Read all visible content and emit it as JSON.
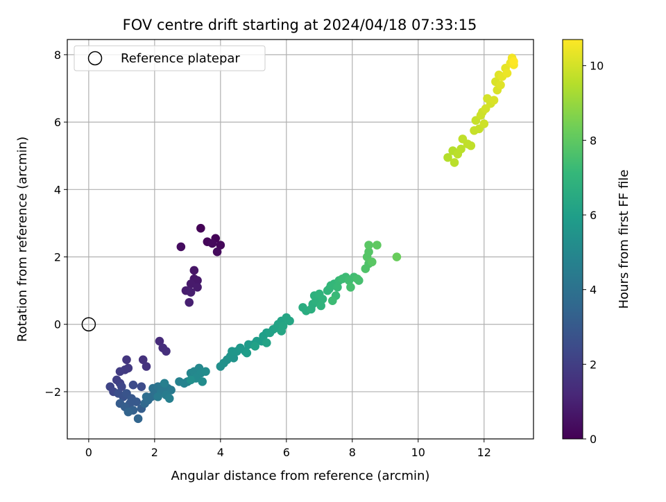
{
  "chart_data": {
    "type": "scatter",
    "title": "FOV centre drift starting at 2024/04/18 07:33:15",
    "xlabel": "Angular distance from reference (arcmin)",
    "ylabel": "Rotation from reference (arcmin)",
    "xlim": [
      -0.65,
      13.5
    ],
    "ylim": [
      -3.4,
      8.45
    ],
    "xticks": [
      0,
      2,
      4,
      6,
      8,
      10,
      12
    ],
    "yticks": [
      -2,
      0,
      2,
      4,
      6,
      8
    ],
    "xtick_labels": [
      "0",
      "2",
      "4",
      "6",
      "8",
      "10",
      "12"
    ],
    "ytick_labels": [
      "−2",
      "0",
      "2",
      "4",
      "6",
      "8"
    ],
    "grid": true,
    "legend": {
      "placement": "top-left",
      "entries": [
        "Reference platepar"
      ]
    },
    "colorbar": {
      "label": "Hours from first FF file",
      "colormap": "viridis",
      "range": [
        0,
        10.7
      ],
      "ticks": [
        0,
        2,
        4,
        6,
        8,
        10
      ],
      "tick_labels": [
        "0",
        "2",
        "4",
        "6",
        "8",
        "10"
      ]
    },
    "reference_point": {
      "x": 0,
      "y": 0,
      "label": "Reference platepar"
    },
    "series": [
      {
        "name": "",
        "points": [
          [
            3.4,
            2.85,
            0.05
          ],
          [
            3.85,
            2.55,
            0.1
          ],
          [
            3.6,
            2.45,
            0.15
          ],
          [
            4.0,
            2.35,
            0.2
          ],
          [
            3.75,
            2.4,
            0.25
          ],
          [
            3.9,
            2.15,
            0.3
          ],
          [
            2.8,
            2.3,
            0.35
          ],
          [
            3.2,
            1.6,
            0.6
          ],
          [
            3.2,
            1.35,
            0.65
          ],
          [
            3.3,
            1.3,
            0.7
          ],
          [
            3.1,
            1.2,
            0.75
          ],
          [
            3.3,
            1.1,
            0.8
          ],
          [
            2.95,
            1.0,
            0.85
          ],
          [
            3.1,
            0.95,
            0.9
          ],
          [
            3.05,
            0.65,
            0.95
          ],
          [
            2.15,
            -0.5,
            1.3
          ],
          [
            2.25,
            -0.7,
            1.4
          ],
          [
            2.35,
            -0.8,
            1.45
          ],
          [
            1.65,
            -1.05,
            1.5
          ],
          [
            1.75,
            -1.25,
            1.6
          ],
          [
            1.15,
            -1.05,
            1.7
          ],
          [
            1.2,
            -1.3,
            1.8
          ],
          [
            1.1,
            -1.35,
            1.85
          ],
          [
            0.95,
            -1.4,
            1.9
          ],
          [
            0.85,
            -1.65,
            2.0
          ],
          [
            0.95,
            -1.75,
            2.1
          ],
          [
            0.65,
            -1.85,
            2.2
          ],
          [
            0.75,
            -2.0,
            2.3
          ],
          [
            1.0,
            -1.85,
            2.3
          ],
          [
            1.35,
            -1.8,
            2.5
          ],
          [
            1.6,
            -1.85,
            2.5
          ],
          [
            0.9,
            -2.05,
            2.6
          ],
          [
            1.05,
            -2.15,
            2.7
          ],
          [
            1.15,
            -2.05,
            2.8
          ],
          [
            1.3,
            -2.2,
            2.9
          ],
          [
            1.45,
            -2.3,
            3.0
          ],
          [
            1.25,
            -2.35,
            3.0
          ],
          [
            0.95,
            -2.35,
            3.1
          ],
          [
            1.1,
            -2.45,
            3.2
          ],
          [
            1.6,
            -2.5,
            3.2
          ],
          [
            1.35,
            -2.55,
            3.3
          ],
          [
            1.2,
            -2.6,
            3.4
          ],
          [
            1.5,
            -2.8,
            3.5
          ],
          [
            1.7,
            -2.35,
            3.6
          ],
          [
            1.8,
            -2.25,
            3.7
          ],
          [
            1.75,
            -2.15,
            3.8
          ],
          [
            1.9,
            -2.15,
            3.8
          ],
          [
            2.0,
            -2.05,
            3.9
          ],
          [
            2.05,
            -1.95,
            4.0
          ],
          [
            1.95,
            -1.9,
            4.0
          ],
          [
            2.1,
            -1.85,
            4.1
          ],
          [
            2.2,
            -1.85,
            4.2
          ],
          [
            2.3,
            -1.8,
            4.2
          ],
          [
            2.4,
            -1.9,
            4.3
          ],
          [
            2.2,
            -2.0,
            4.3
          ],
          [
            2.1,
            -2.15,
            4.4
          ],
          [
            2.5,
            -1.95,
            4.4
          ],
          [
            2.35,
            -2.1,
            4.5
          ],
          [
            2.45,
            -2.2,
            4.6
          ],
          [
            2.3,
            -1.75,
            4.6
          ],
          [
            2.75,
            -1.7,
            4.7
          ],
          [
            2.9,
            -1.75,
            4.8
          ],
          [
            3.0,
            -1.7,
            4.8
          ],
          [
            3.15,
            -1.55,
            4.9
          ],
          [
            3.1,
            -1.45,
            4.9
          ],
          [
            3.2,
            -1.4,
            5.0
          ],
          [
            3.3,
            -1.5,
            5.0
          ],
          [
            3.35,
            -1.3,
            5.0
          ],
          [
            3.4,
            -1.45,
            5.1
          ],
          [
            3.25,
            -1.6,
            5.1
          ],
          [
            3.55,
            -1.4,
            5.2
          ],
          [
            3.45,
            -1.7,
            5.2
          ],
          [
            3.1,
            -1.65,
            5.3
          ],
          [
            4.0,
            -1.25,
            5.3
          ],
          [
            4.1,
            -1.15,
            5.4
          ],
          [
            4.2,
            -1.05,
            5.4
          ],
          [
            4.3,
            -0.95,
            5.5
          ],
          [
            4.4,
            -1.0,
            5.5
          ],
          [
            4.35,
            -0.8,
            5.6
          ],
          [
            4.5,
            -0.8,
            5.6
          ],
          [
            4.6,
            -0.7,
            5.7
          ],
          [
            4.75,
            -0.8,
            5.7
          ],
          [
            4.85,
            -0.6,
            5.8
          ],
          [
            5.0,
            -0.6,
            5.8
          ],
          [
            5.1,
            -0.5,
            5.9
          ],
          [
            5.25,
            -0.5,
            5.9
          ],
          [
            5.3,
            -0.35,
            6.0
          ],
          [
            5.4,
            -0.25,
            6.0
          ],
          [
            5.5,
            -0.25,
            6.1
          ],
          [
            5.6,
            -0.15,
            6.1
          ],
          [
            5.7,
            -0.1,
            6.2
          ],
          [
            5.75,
            0.0,
            6.2
          ],
          [
            5.85,
            0.1,
            6.2
          ],
          [
            5.9,
            -0.05,
            6.3
          ],
          [
            6.0,
            0.2,
            6.3
          ],
          [
            6.1,
            0.1,
            6.3
          ],
          [
            5.85,
            -0.2,
            6.3
          ],
          [
            5.4,
            -0.55,
            6.2
          ],
          [
            5.05,
            -0.65,
            6.1
          ],
          [
            4.8,
            -0.85,
            5.9
          ],
          [
            6.5,
            0.5,
            6.6
          ],
          [
            6.6,
            0.4,
            6.6
          ],
          [
            6.75,
            0.45,
            6.7
          ],
          [
            6.8,
            0.6,
            6.7
          ],
          [
            6.9,
            0.7,
            6.8
          ],
          [
            6.85,
            0.85,
            6.8
          ],
          [
            7.0,
            0.9,
            6.9
          ],
          [
            7.1,
            0.75,
            6.9
          ],
          [
            7.05,
            0.55,
            6.9
          ],
          [
            7.25,
            1.0,
            7.0
          ],
          [
            7.3,
            1.05,
            7.0
          ],
          [
            7.35,
            1.15,
            7.1
          ],
          [
            7.45,
            1.2,
            7.1
          ],
          [
            7.55,
            1.1,
            7.2
          ],
          [
            7.6,
            1.3,
            7.2
          ],
          [
            7.5,
            0.85,
            7.2
          ],
          [
            7.7,
            1.35,
            7.3
          ],
          [
            7.8,
            1.4,
            7.3
          ],
          [
            7.9,
            1.3,
            7.4
          ],
          [
            8.05,
            1.4,
            7.4
          ],
          [
            8.15,
            1.35,
            7.5
          ],
          [
            8.2,
            1.3,
            7.5
          ],
          [
            7.95,
            1.1,
            7.5
          ],
          [
            7.4,
            0.7,
            7.3
          ],
          [
            8.4,
            1.65,
            7.7
          ],
          [
            8.5,
            1.8,
            7.7
          ],
          [
            8.45,
            2.0,
            7.8
          ],
          [
            8.5,
            2.15,
            7.8
          ],
          [
            8.5,
            2.35,
            7.9
          ],
          [
            8.6,
            1.85,
            7.9
          ],
          [
            8.75,
            2.35,
            8.0
          ],
          [
            9.35,
            2.0,
            8.2
          ],
          [
            10.9,
            4.95,
            9.5
          ],
          [
            11.05,
            5.15,
            9.5
          ],
          [
            11.1,
            4.8,
            9.6
          ],
          [
            11.2,
            5.05,
            9.6
          ],
          [
            11.3,
            5.2,
            9.6
          ],
          [
            11.35,
            5.5,
            9.7
          ],
          [
            11.5,
            5.35,
            9.7
          ],
          [
            11.6,
            5.3,
            9.7
          ],
          [
            11.7,
            5.75,
            9.8
          ],
          [
            11.75,
            6.05,
            9.8
          ],
          [
            11.85,
            5.8,
            9.8
          ],
          [
            11.9,
            6.2,
            9.9
          ],
          [
            11.95,
            6.3,
            9.9
          ],
          [
            12.0,
            5.95,
            9.9
          ],
          [
            12.05,
            6.4,
            10.0
          ],
          [
            12.1,
            6.7,
            10.0
          ],
          [
            12.2,
            6.55,
            10.0
          ],
          [
            12.3,
            6.65,
            10.1
          ],
          [
            12.35,
            7.2,
            10.1
          ],
          [
            12.4,
            6.95,
            10.1
          ],
          [
            12.45,
            7.4,
            10.2
          ],
          [
            12.5,
            7.1,
            10.2
          ],
          [
            12.55,
            7.35,
            10.3
          ],
          [
            12.65,
            7.6,
            10.3
          ],
          [
            12.7,
            7.45,
            10.4
          ],
          [
            12.8,
            7.75,
            10.4
          ],
          [
            12.85,
            7.9,
            10.5
          ],
          [
            12.9,
            7.7,
            10.6
          ],
          [
            12.9,
            7.8,
            10.7
          ]
        ]
      }
    ]
  },
  "colors": {
    "viridis_stops": [
      "#440154",
      "#482878",
      "#3e4989",
      "#31688e",
      "#26828e",
      "#1f9e89",
      "#35b779",
      "#6ece58",
      "#b5de2b",
      "#fde725"
    ],
    "grid": "#b0b0b0",
    "reference_marker": "#000000",
    "legend_border": "#cccccc"
  }
}
